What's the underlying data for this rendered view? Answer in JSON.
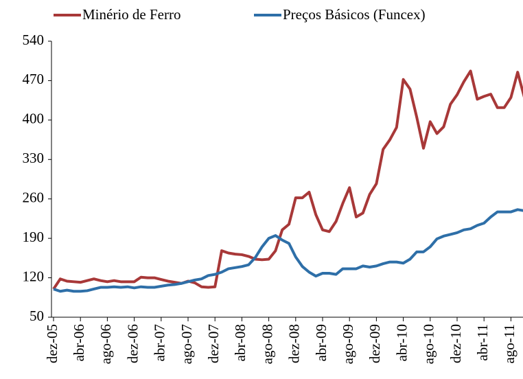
{
  "chart_data": {
    "type": "line",
    "categories": [
      "dez-05",
      null,
      null,
      null,
      "abr-06",
      null,
      null,
      null,
      "ago-06",
      null,
      null,
      null,
      "dez-06",
      null,
      null,
      null,
      "abr-07",
      null,
      null,
      null,
      "ago-07",
      null,
      null,
      null,
      "dez-07",
      null,
      null,
      null,
      "abr-08",
      null,
      null,
      null,
      "ago-08",
      null,
      null,
      null,
      "dez-08",
      null,
      null,
      null,
      "abr-09",
      null,
      null,
      null,
      "ago-09",
      null,
      null,
      null,
      "dez-09",
      null,
      null,
      null,
      "abr-10",
      null,
      null,
      null,
      "ago-10",
      null,
      null,
      null,
      "dez-10",
      null,
      null,
      null,
      "abr-11",
      null,
      null,
      null,
      "ago-11",
      null,
      null
    ],
    "series": [
      {
        "name": "Minério de Ferro",
        "color": "#a83838",
        "values": [
          100,
          118,
          114,
          113,
          112,
          115,
          118,
          115,
          113,
          115,
          113,
          113,
          113,
          121,
          120,
          120,
          117,
          114,
          112,
          110,
          114,
          111,
          104,
          103,
          104,
          168,
          164,
          162,
          161,
          158,
          153,
          152,
          153,
          168,
          205,
          215,
          262,
          262,
          272,
          232,
          205,
          202,
          220,
          252,
          280,
          228,
          235,
          268,
          287,
          348,
          365,
          387,
          472,
          455,
          405,
          350,
          397,
          376,
          388,
          428,
          445,
          468,
          487,
          437,
          442,
          446,
          422,
          422,
          440,
          485,
          440
        ]
      },
      {
        "name": "Preços Básicos (Funcex)",
        "color": "#2e6fa8",
        "values": [
          100,
          96,
          98,
          96,
          96,
          97,
          100,
          103,
          103,
          104,
          103,
          104,
          102,
          104,
          103,
          103,
          105,
          107,
          108,
          110,
          113,
          116,
          118,
          124,
          126,
          130,
          136,
          138,
          140,
          143,
          156,
          175,
          190,
          195,
          187,
          181,
          157,
          140,
          130,
          123,
          128,
          128,
          126,
          136,
          136,
          136,
          141,
          139,
          141,
          145,
          148,
          148,
          146,
          153,
          166,
          166,
          175,
          189,
          194,
          197,
          200,
          205,
          207,
          213,
          217,
          228,
          237,
          237,
          237,
          241,
          239
        ]
      }
    ],
    "ylim": [
      50,
      540
    ],
    "yticks": [
      50,
      120,
      190,
      260,
      330,
      400,
      470,
      540
    ],
    "grid": false
  }
}
